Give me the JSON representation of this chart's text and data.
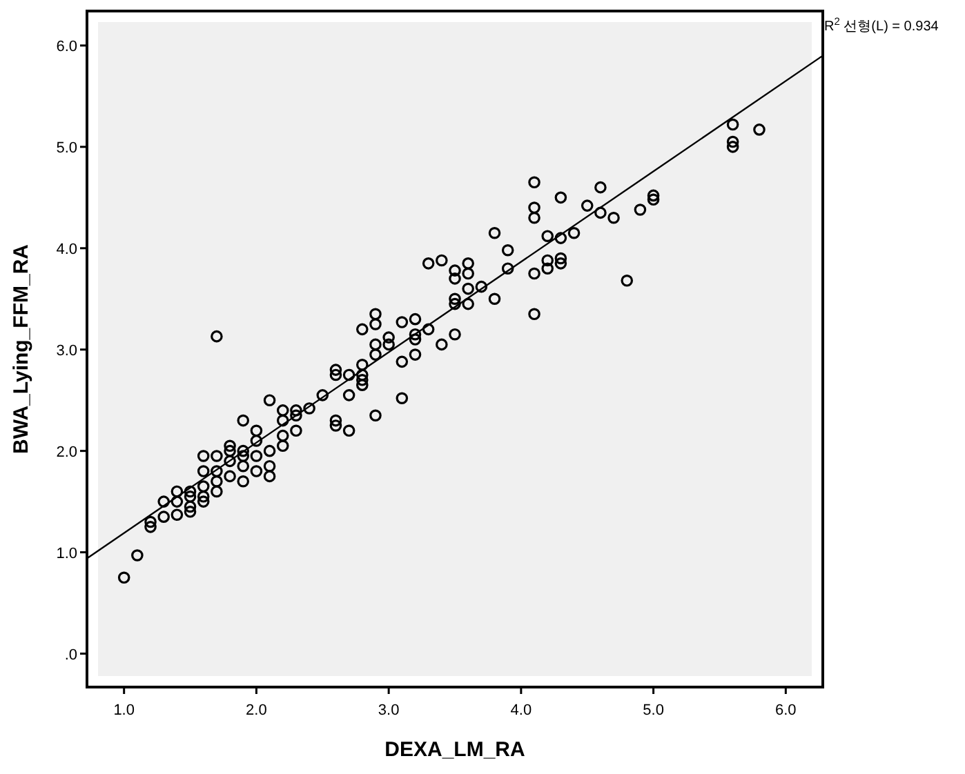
{
  "chart_data": {
    "type": "scatter",
    "xlabel": "DEXA_LM_RA",
    "ylabel": "BWA_Lying_FFM_RA",
    "annotations": [
      "R$^{2}$ 선형(L) = 0.934"
    ],
    "xlim": [
      0.72,
      6.28
    ],
    "ylim": [
      -0.33,
      6.34
    ],
    "xticks": [
      {
        "value": 1,
        "label": "1.0"
      },
      {
        "value": 2,
        "label": "2.0"
      },
      {
        "value": 3,
        "label": "3.0"
      },
      {
        "value": 4,
        "label": "4.0"
      },
      {
        "value": 5,
        "label": "5.0"
      },
      {
        "value": 6,
        "label": "6.0"
      }
    ],
    "yticks": [
      {
        "value": 0,
        "label": ".0"
      },
      {
        "value": 1,
        "label": "1.0"
      },
      {
        "value": 2,
        "label": "2.0"
      },
      {
        "value": 3,
        "label": "3.0"
      },
      {
        "value": 4,
        "label": "4.0"
      },
      {
        "value": 5,
        "label": "5.0"
      },
      {
        "value": 6,
        "label": "6.0"
      }
    ],
    "grid": false,
    "marker": "circle",
    "series": [
      {
        "type": "scatter",
        "color": "#000000",
        "x": [
          1.0,
          1.1,
          1.2,
          1.2,
          1.3,
          1.3,
          1.4,
          1.4,
          1.4,
          1.5,
          1.5,
          1.5,
          1.5,
          1.6,
          1.6,
          1.6,
          1.6,
          1.6,
          1.7,
          1.7,
          1.7,
          1.7,
          1.7,
          1.8,
          1.8,
          1.8,
          1.8,
          1.9,
          1.9,
          1.9,
          1.9,
          1.9,
          2.0,
          2.0,
          2.0,
          2.0,
          2.1,
          2.1,
          2.1,
          2.2,
          2.2,
          2.2,
          2.2,
          2.1,
          2.3,
          2.3,
          2.3,
          2.4,
          2.5,
          2.6,
          2.6,
          2.6,
          2.6,
          2.7,
          2.7,
          2.7,
          2.8,
          2.8,
          2.8,
          2.8,
          2.8,
          2.9,
          2.9,
          2.9,
          2.9,
          2.9,
          3.0,
          3.0,
          3.1,
          3.1,
          3.1,
          3.2,
          3.2,
          3.2,
          3.2,
          3.3,
          3.3,
          3.4,
          3.4,
          3.5,
          3.5,
          3.5,
          3.5,
          3.5,
          3.6,
          3.6,
          3.6,
          3.6,
          3.7,
          3.8,
          3.8,
          3.9,
          3.9,
          4.1,
          4.1,
          4.1,
          4.1,
          4.1,
          4.2,
          4.2,
          4.2,
          4.3,
          4.3,
          4.3,
          4.3,
          4.4,
          4.5,
          4.6,
          4.6,
          4.7,
          4.8,
          4.9,
          5.0,
          5.0,
          5.6,
          5.6,
          5.6,
          5.8
        ],
        "values": [
          0.75,
          0.97,
          1.25,
          1.3,
          1.35,
          1.5,
          1.37,
          1.5,
          1.6,
          1.4,
          1.45,
          1.55,
          1.6,
          1.5,
          1.55,
          1.65,
          1.8,
          1.95,
          1.6,
          1.7,
          1.8,
          1.95,
          3.13,
          1.75,
          1.9,
          2.0,
          2.05,
          1.7,
          1.85,
          1.95,
          2.0,
          2.3,
          1.8,
          1.95,
          2.1,
          2.2,
          1.75,
          1.85,
          2.0,
          2.05,
          2.15,
          2.3,
          2.4,
          2.5,
          2.2,
          2.35,
          2.4,
          2.42,
          2.55,
          2.3,
          2.25,
          2.75,
          2.8,
          2.2,
          2.55,
          2.75,
          2.65,
          2.7,
          2.75,
          2.85,
          3.2,
          2.35,
          2.95,
          3.05,
          3.25,
          3.35,
          3.05,
          3.12,
          2.52,
          2.88,
          3.27,
          2.95,
          3.1,
          3.15,
          3.3,
          3.2,
          3.85,
          3.05,
          3.88,
          3.15,
          3.45,
          3.5,
          3.7,
          3.78,
          3.45,
          3.6,
          3.75,
          3.85,
          3.62,
          3.5,
          4.15,
          3.8,
          3.98,
          3.35,
          3.75,
          4.3,
          4.4,
          4.65,
          3.8,
          3.88,
          4.12,
          3.85,
          3.9,
          4.1,
          4.5,
          4.15,
          4.42,
          4.6,
          4.35,
          4.3,
          3.68,
          4.38,
          4.48,
          4.52,
          5.0,
          5.05,
          5.22,
          5.17
        ]
      },
      {
        "type": "line",
        "color": "#000000",
        "marker": "none",
        "x": [
          0.72,
          6.28
        ],
        "values": [
          0.94,
          5.9
        ]
      }
    ]
  }
}
